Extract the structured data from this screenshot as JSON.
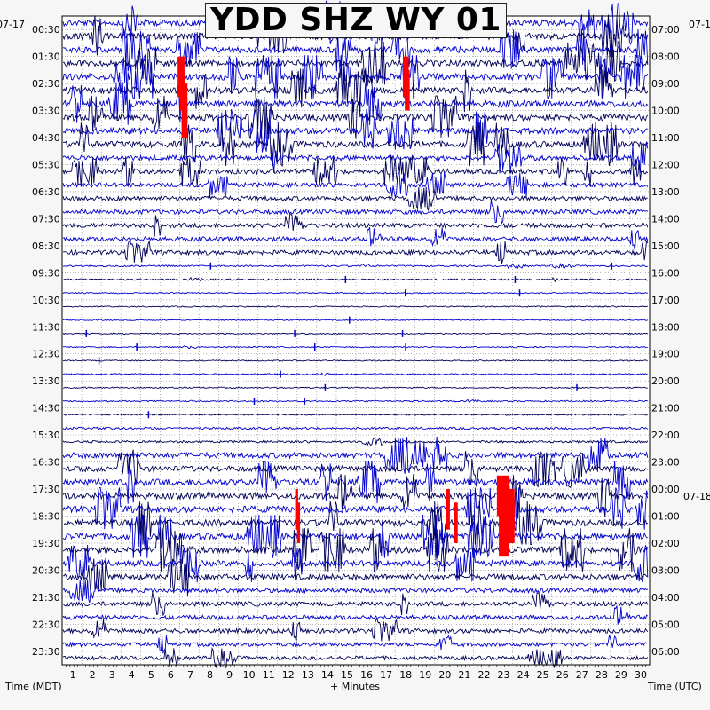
{
  "title": "YDD SHZ WY 01",
  "left_axis_title": "Time (MDT)",
  "right_axis_title": "Time (UTC)",
  "bottom_axis_title": "+ Minutes",
  "left_date": "07-17",
  "right_date_top": "07-1",
  "right_date_mid": "07-18",
  "colors": {
    "trace_a": "#0000d0",
    "trace_b": "#00005a",
    "clip": "#ff0000",
    "grid": "#888888",
    "background": "#ffffff"
  },
  "chart_data": {
    "type": "heatmap",
    "title": "YDD SHZ WY 01",
    "xlabel": "+ Minutes",
    "ylabel_left": "Time (MDT)",
    "ylabel_right": "Time (UTC)",
    "x_ticks": [
      1,
      2,
      3,
      4,
      5,
      6,
      7,
      8,
      9,
      10,
      11,
      12,
      13,
      14,
      15,
      16,
      17,
      18,
      19,
      20,
      21,
      22,
      23,
      24,
      25,
      26,
      27,
      28,
      29,
      30
    ],
    "xlim": [
      0,
      30
    ],
    "left_time_labels": [
      "00:30",
      "01:30",
      "02:30",
      "03:30",
      "04:30",
      "05:30",
      "06:30",
      "07:30",
      "08:30",
      "09:30",
      "10:30",
      "11:30",
      "12:30",
      "13:30",
      "14:30",
      "15:30",
      "16:30",
      "17:30",
      "18:30",
      "19:30",
      "20:30",
      "21:30",
      "22:30",
      "23:30"
    ],
    "right_time_labels": [
      "07:00",
      "08:00",
      "09:00",
      "10:00",
      "11:00",
      "12:00",
      "13:00",
      "14:00",
      "15:00",
      "16:00",
      "17:00",
      "18:00",
      "19:00",
      "20:00",
      "21:00",
      "22:00",
      "23:00",
      "00:00",
      "01:00",
      "02:00",
      "03:00",
      "04:00",
      "05:00",
      "06:00"
    ],
    "trace_lines_per_hour": 2,
    "activity_by_hour": [
      0.9,
      0.9,
      0.95,
      0.95,
      0.9,
      0.7,
      0.6,
      0.6,
      0.6,
      0.1,
      0.02,
      0.02,
      0.03,
      0.05,
      0.06,
      0.2,
      0.8,
      0.95,
      0.95,
      0.95,
      0.8,
      0.6,
      0.6,
      0.5
    ],
    "grid": true
  }
}
